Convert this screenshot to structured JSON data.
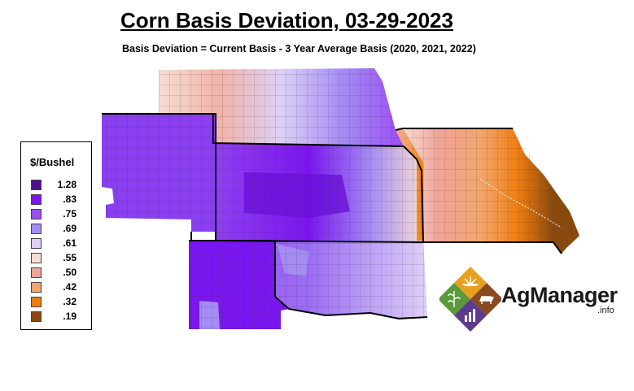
{
  "title": "Corn Basis Deviation, 03-29-2023",
  "subtitle": "Basis Deviation = Current Basis - 3 Year Average Basis (2020, 2021, 2022)",
  "legend": {
    "title": "$/Bushel",
    "items": [
      {
        "label": "1.28",
        "color": "#4b0f8f"
      },
      {
        "label": ".83",
        "color": "#7a16ee"
      },
      {
        "label": ".75",
        "color": "#9b4df2"
      },
      {
        "label": ".69",
        "color": "#a48cf3"
      },
      {
        "label": ".61",
        "color": "#ddd0f7"
      },
      {
        "label": ".55",
        "color": "#f6ddd2"
      },
      {
        "label": ".50",
        "color": "#f1a49b"
      },
      {
        "label": ".42",
        "color": "#f3a56a"
      },
      {
        "label": ".32",
        "color": "#f07d10"
      },
      {
        "label": ".19",
        "color": "#8a4a0e"
      }
    ]
  },
  "logo": {
    "name": "AgManager",
    "suffix": ".info",
    "colors": {
      "orange": "#e8a020",
      "green": "#5a9a3a",
      "brown": "#8a4a20",
      "purple": "#5e3a8c"
    }
  }
}
